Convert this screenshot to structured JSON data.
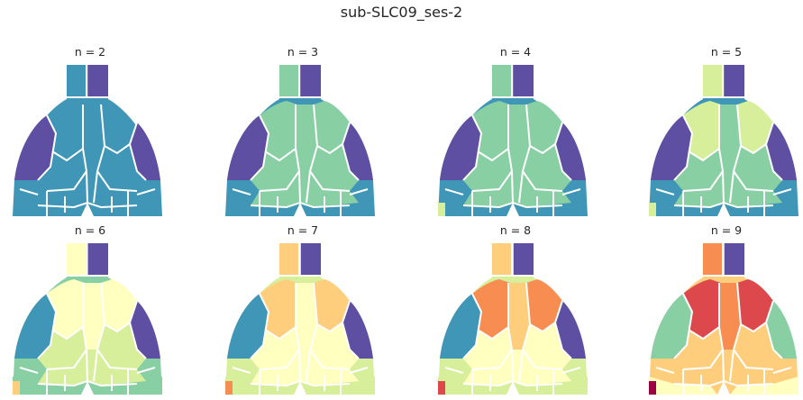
{
  "figure": {
    "title": "sub-SLC09_ses-2"
  },
  "colors": {
    "c0": "#5e4fa2",
    "c1": "#3f96b7",
    "c2": "#88cfa4",
    "c3": "#d7ef9b",
    "c4": "#ffffbf",
    "c5": "#fece7c",
    "c6": "#f88d51",
    "c7": "#dc484c",
    "c8": "#9e0142",
    "boundary": "#ffffff"
  },
  "panels": [
    {
      "title": "n = 2",
      "n": 2
    },
    {
      "title": "n = 3",
      "n": 3
    },
    {
      "title": "n = 4",
      "n": 4
    },
    {
      "title": "n = 5",
      "n": 5
    },
    {
      "title": "n = 6",
      "n": 6
    },
    {
      "title": "n = 7",
      "n": 7
    },
    {
      "title": "n = 8",
      "n": 8
    },
    {
      "title": "n = 9",
      "n": 9
    }
  ]
}
